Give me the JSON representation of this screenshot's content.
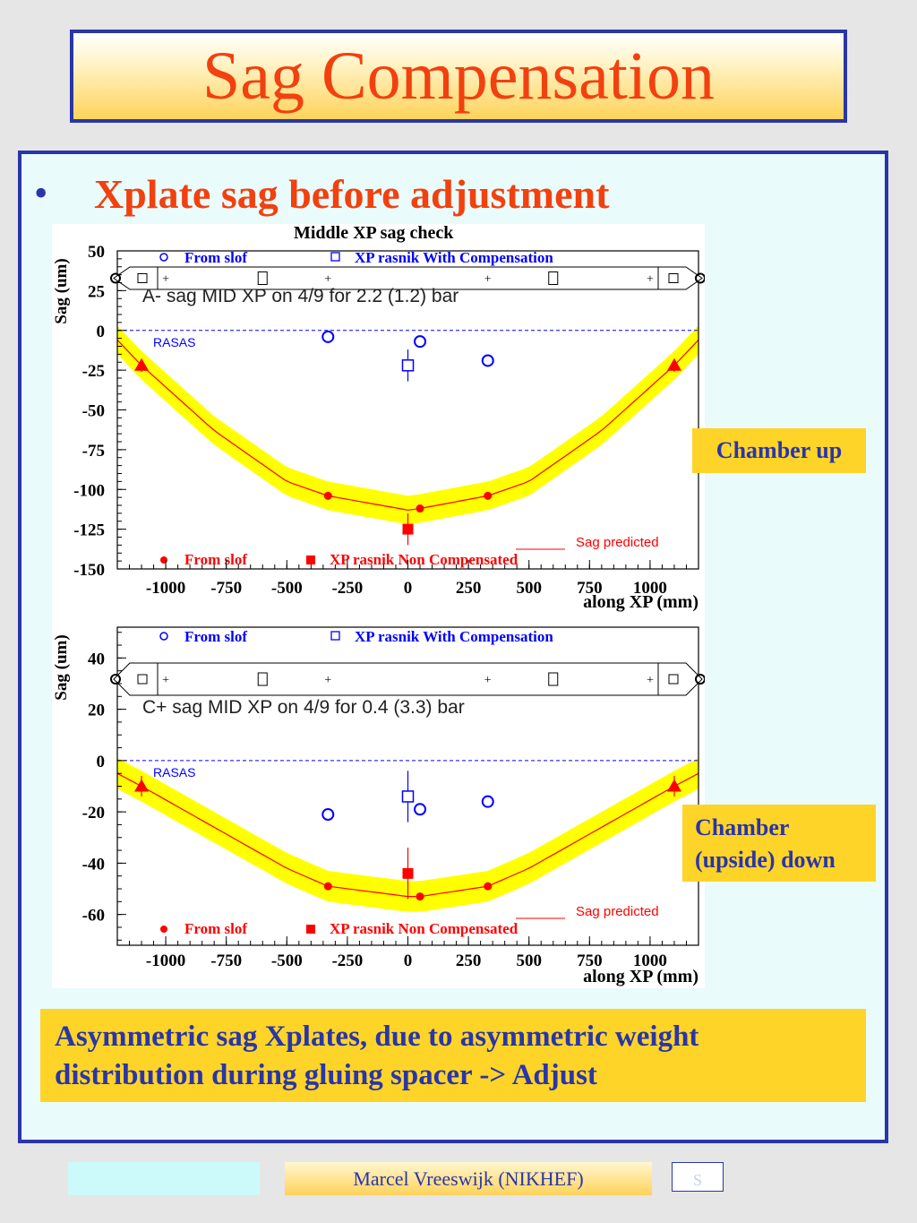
{
  "slide": {
    "title": "Sag Compensation",
    "bullet": "•",
    "heading": "Xplate sag before adjustment"
  },
  "chart_title": "Middle XP sag check",
  "notes": {
    "chamber_up": "Chamber up",
    "chamber_down_line1": "Chamber",
    "chamber_down_line2": "(upside) down"
  },
  "summary": {
    "line1": "Asymmetric sag Xplates, due to asymmetric weight",
    "line2": "distribution during gluing spacer -> Adjust"
  },
  "footer": {
    "author": "Marcel Vreeswijk (NIKHEF)",
    "page": "S"
  },
  "colors": {
    "title": "#f2400f",
    "blue": "#2a35a8",
    "band": "#ffff00",
    "red": "#ff0000",
    "data_blue": "#0000ff"
  },
  "chart_data": [
    {
      "type": "scatter",
      "title": "Middle XP sag check",
      "subtitle": "A- sag MID XP on 4/9 for 2.2 (1.2) bar",
      "xlabel": "along XP (mm)",
      "ylabel": "Sag (um)",
      "xlim": [
        -1200,
        1200
      ],
      "ylim": [
        -150,
        50
      ],
      "xticks": [
        -1000,
        -750,
        -500,
        -250,
        0,
        250,
        500,
        750,
        1000
      ],
      "xtick_labels": [
        "-1000",
        "-750",
        "-500",
        "-250",
        "0",
        "250",
        "500",
        "750",
        "1000"
      ],
      "yticks": [
        50,
        25,
        0,
        -25,
        -50,
        -75,
        -100,
        -125,
        -150
      ],
      "ytick_labels": [
        "50",
        "25",
        "0",
        "-25",
        "-50",
        "-75",
        "-100",
        "-125",
        "-150"
      ],
      "reference_label": "RASAS",
      "legend_top": [
        "From slof",
        "XP rasnik With Compensation"
      ],
      "legend_bottom": [
        "From slof",
        "XP rasnik Non Compensated"
      ],
      "curve_label": "Sag predicted",
      "series": [
        {
          "name": "From slof",
          "marker": "open-circle",
          "color": "#0000ff",
          "x": [
            -330,
            50,
            330
          ],
          "y": [
            -4,
            -7,
            -19
          ]
        },
        {
          "name": "XP rasnik With Compensation",
          "marker": "open-square",
          "color": "#0000ff",
          "x": [
            0
          ],
          "y": [
            -22
          ],
          "yerr": [
            10
          ]
        },
        {
          "name": "From slof",
          "marker": "filled-circle",
          "color": "#ff0000",
          "x": [
            -330,
            50,
            330
          ],
          "y": [
            -104,
            -112,
            -104
          ]
        },
        {
          "name": "XP rasnik Non Compensated",
          "marker": "filled-square",
          "color": "#ff0000",
          "x": [
            0
          ],
          "y": [
            -125
          ],
          "yerr": [
            10
          ]
        },
        {
          "name": "",
          "marker": "triangle",
          "color": "#ff0000",
          "x": [
            -1100,
            1100
          ],
          "y": [
            -22,
            -22
          ],
          "yerr": [
            4,
            4
          ]
        }
      ],
      "curve": {
        "x": [
          -1200,
          -1100,
          -800,
          -500,
          -330,
          0,
          50,
          330,
          500,
          800,
          1100,
          1200
        ],
        "y": [
          -6,
          -22,
          -63,
          -95,
          -104,
          -113,
          -112,
          -104,
          -95,
          -63,
          -22,
          -6
        ],
        "band": 9
      }
    },
    {
      "type": "scatter",
      "title": "",
      "subtitle": "C+ sag MID XP on 4/9 for 0.4 (3.3) bar",
      "xlabel": "along XP (mm)",
      "ylabel": "Sag (um)",
      "xlim": [
        -1200,
        1200
      ],
      "ylim": [
        -72,
        52
      ],
      "xticks": [
        -1000,
        -750,
        -500,
        -250,
        0,
        250,
        500,
        750,
        1000
      ],
      "xtick_labels": [
        "-1000",
        "-750",
        "-500",
        "-250",
        "0",
        "250",
        "500",
        "750",
        "1000"
      ],
      "yticks": [
        40,
        20,
        0,
        -20,
        -40,
        -60
      ],
      "ytick_labels": [
        "40",
        "20",
        "0",
        "-20",
        "-40",
        "-60"
      ],
      "reference_label": "RASAS",
      "legend_top": [
        "From slof",
        "XP rasnik With Compensation"
      ],
      "legend_bottom": [
        "From slof",
        "XP rasnik Non Compensated"
      ],
      "curve_label": "Sag predicted",
      "series": [
        {
          "name": "From slof",
          "marker": "open-circle",
          "color": "#0000ff",
          "x": [
            -330,
            50,
            330
          ],
          "y": [
            -21,
            -19,
            -16
          ]
        },
        {
          "name": "XP rasnik With Compensation",
          "marker": "open-square",
          "color": "#0000ff",
          "x": [
            0
          ],
          "y": [
            -14
          ],
          "yerr": [
            10
          ]
        },
        {
          "name": "From slof",
          "marker": "filled-circle",
          "color": "#ff0000",
          "x": [
            -330,
            50,
            330
          ],
          "y": [
            -49,
            -53,
            -49
          ]
        },
        {
          "name": "XP rasnik Non Compensated",
          "marker": "filled-square",
          "color": "#ff0000",
          "x": [
            0
          ],
          "y": [
            -44
          ],
          "yerr": [
            10
          ]
        },
        {
          "name": "",
          "marker": "triangle",
          "color": "#ff0000",
          "x": [
            -1100,
            1100
          ],
          "y": [
            -10,
            -10
          ],
          "yerr": [
            4,
            4
          ]
        }
      ],
      "curve": {
        "x": [
          -1200,
          -1100,
          -800,
          -500,
          -330,
          0,
          50,
          330,
          500,
          800,
          1100,
          1200
        ],
        "y": [
          -5,
          -10,
          -26,
          -42,
          -49,
          -53,
          -53,
          -49,
          -42,
          -26,
          -10,
          -5
        ],
        "band": 6
      }
    }
  ]
}
